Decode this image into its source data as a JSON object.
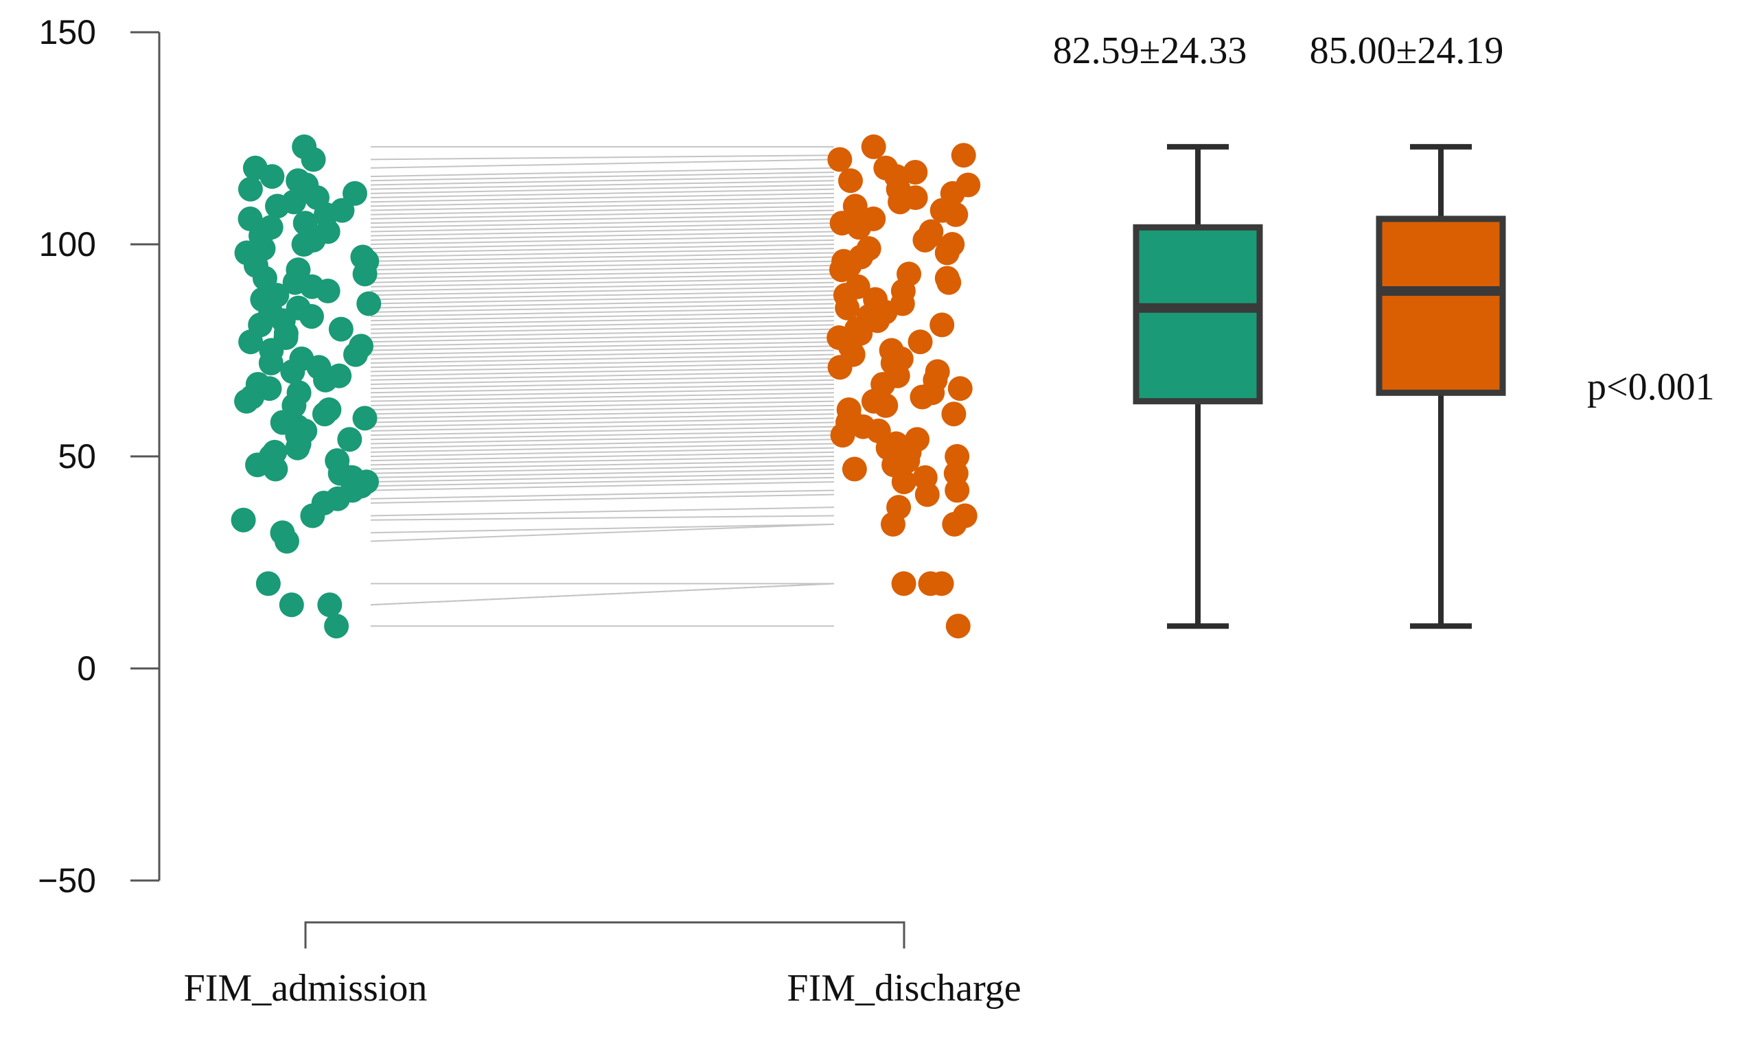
{
  "chart_data": {
    "type": "paired-dot-and-box",
    "ylim": [
      -50,
      150
    ],
    "y_ticks": [
      -50,
      0,
      50,
      100,
      150
    ],
    "y_tick_labels": [
      "−50",
      "0",
      "50",
      "100",
      "150"
    ],
    "categories": [
      "FIM_admission",
      "FIM_discharge"
    ],
    "colors": {
      "admission": "#1a9a76",
      "discharge": "#d95f02",
      "pair_line": "#c4c4c4",
      "box_edge": "#3a3a3a"
    },
    "stats": [
      {
        "name": "FIM_admission",
        "label": "82.59±24.33",
        "min": 10,
        "q1": 63,
        "median": 85,
        "q3": 104,
        "max": 123
      },
      {
        "name": "FIM_discharge",
        "label": "85.00±24.19",
        "min": 10,
        "q1": 65,
        "median": 89,
        "q3": 106,
        "max": 123
      }
    ],
    "p_value_label": "p<0.001",
    "paired_samples": {
      "note": "admission and discharge FIM scores per patient (approximate)",
      "admission": [
        123,
        120,
        118,
        116,
        115,
        114,
        113,
        112,
        111,
        110,
        109,
        108,
        107,
        106,
        105,
        104,
        103,
        102,
        101,
        100,
        99,
        98,
        97,
        96,
        95,
        94,
        93,
        92,
        91,
        90,
        89,
        88,
        87,
        86,
        85,
        84,
        83,
        82,
        81,
        80,
        79,
        78,
        77,
        76,
        75,
        74,
        73,
        72,
        71,
        70,
        69,
        68,
        67,
        66,
        65,
        64,
        63,
        62,
        61,
        60,
        59,
        58,
        57,
        56,
        55,
        54,
        53,
        52,
        51,
        50,
        49,
        48,
        47,
        46,
        45,
        44,
        43,
        42,
        40,
        39,
        36,
        35,
        32,
        30,
        20,
        15,
        15,
        10
      ],
      "discharge": [
        123,
        121,
        120,
        118,
        117,
        116,
        115,
        114,
        113,
        112,
        111,
        110,
        109,
        108,
        107,
        106,
        105,
        104,
        103,
        102,
        101,
        100,
        99,
        98,
        97,
        96,
        95,
        94,
        93,
        92,
        91,
        90,
        89,
        88,
        87,
        86,
        85,
        84,
        83,
        82,
        81,
        80,
        79,
        78,
        77,
        76,
        75,
        74,
        73,
        72,
        71,
        70,
        69,
        68,
        67,
        66,
        65,
        64,
        63,
        62,
        61,
        60,
        59,
        58,
        57,
        56,
        55,
        54,
        53,
        52,
        51,
        50,
        49,
        48,
        47,
        46,
        45,
        44,
        42,
        41,
        38,
        36,
        34,
        34,
        20,
        20,
        20,
        10
      ]
    }
  }
}
